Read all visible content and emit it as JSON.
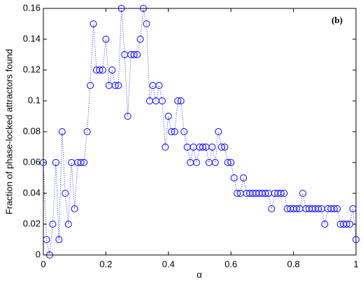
{
  "chart_data": {
    "type": "line",
    "x_label": "α",
    "y_label": "Fraction of phase-locked attractors found",
    "annotation": "(b)",
    "x": [
      0,
      0.01,
      0.02,
      0.03,
      0.04,
      0.05,
      0.06,
      0.07,
      0.08,
      0.09,
      0.1,
      0.11,
      0.12,
      0.13,
      0.14,
      0.15,
      0.16,
      0.17,
      0.18,
      0.19,
      0.2,
      0.21,
      0.22,
      0.23,
      0.24,
      0.25,
      0.26,
      0.27,
      0.28,
      0.29,
      0.3,
      0.31,
      0.32,
      0.33,
      0.34,
      0.35,
      0.36,
      0.37,
      0.38,
      0.39,
      0.4,
      0.41,
      0.42,
      0.43,
      0.44,
      0.45,
      0.46,
      0.47,
      0.48,
      0.49,
      0.5,
      0.51,
      0.52,
      0.53,
      0.54,
      0.55,
      0.56,
      0.57,
      0.58,
      0.59,
      0.6,
      0.61,
      0.62,
      0.63,
      0.64,
      0.65,
      0.66,
      0.67,
      0.68,
      0.69,
      0.7,
      0.71,
      0.72,
      0.73,
      0.74,
      0.75,
      0.76,
      0.77,
      0.78,
      0.79,
      0.8,
      0.81,
      0.82,
      0.83,
      0.84,
      0.85,
      0.86,
      0.87,
      0.88,
      0.89,
      0.9,
      0.91,
      0.92,
      0.93,
      0.94,
      0.95,
      0.96,
      0.97,
      0.98,
      0.99,
      1
    ],
    "series": [
      {
        "color": "#0000ff",
        "values": [
          0.06,
          0.01,
          0,
          0.02,
          0.06,
          0.01,
          0.08,
          0.04,
          0.02,
          0.06,
          0.03,
          0.06,
          0.06,
          0.06,
          0.08,
          0.11,
          0.15,
          0.12,
          0.12,
          0.12,
          0.14,
          0.11,
          0.12,
          0.11,
          0.11,
          0.16,
          0.13,
          0.09,
          0.13,
          0.13,
          0.13,
          0.14,
          0.16,
          0.15,
          0.1,
          0.11,
          0.1,
          0.11,
          0.1,
          0.07,
          0.09,
          0.08,
          0.08,
          0.1,
          0.1,
          0.08,
          0.07,
          0.06,
          0.07,
          0.06,
          0.07,
          0.07,
          0.07,
          0.06,
          0.07,
          0.06,
          0.08,
          0.07,
          0.07,
          0.06,
          0.06,
          0.05,
          0.04,
          0.04,
          0.05,
          0.04,
          0.04,
          0.04,
          0.04,
          0.04,
          0.04,
          0.04,
          0.04,
          0.03,
          0.04,
          0.04,
          0.04,
          0.04,
          0.03,
          0.03,
          0.03,
          0.03,
          0.03,
          0.04,
          0.03,
          0.03,
          0.03,
          0.03,
          0.03,
          0.03,
          0.02,
          0.03,
          0.03,
          0.03,
          0.03,
          0.02,
          0.02,
          0.02,
          0.02,
          0.03,
          0.01
        ]
      }
    ],
    "xlim": [
      0,
      1
    ],
    "ylim": [
      0,
      0.16
    ],
    "xticks": [
      0,
      0.2,
      0.4,
      0.6,
      0.8,
      1
    ],
    "yticks": [
      0,
      0.02,
      0.04,
      0.06,
      0.08,
      0.1,
      0.12,
      0.14,
      0.16
    ],
    "grid": false
  }
}
